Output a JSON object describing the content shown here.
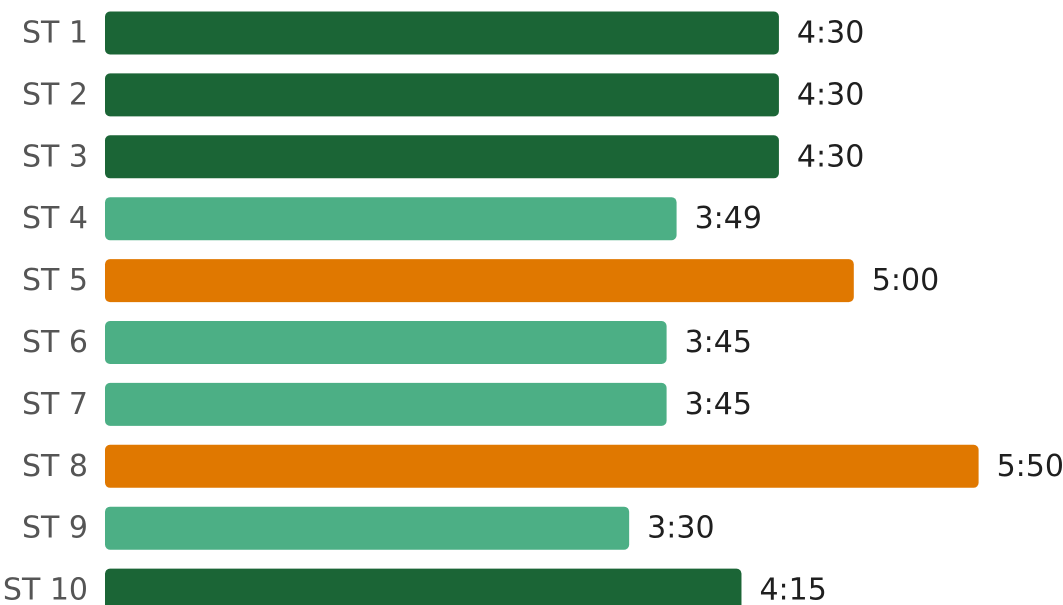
{
  "chart_data": {
    "type": "bar",
    "orientation": "horizontal",
    "title": "",
    "xlabel": "",
    "ylabel": "",
    "categories": [
      "ST 1",
      "ST 2",
      "ST 3",
      "ST 4",
      "ST 5",
      "ST 6",
      "ST 7",
      "ST 8",
      "ST 9",
      "ST 10"
    ],
    "values": [
      270,
      270,
      270,
      229,
      300,
      225,
      225,
      350,
      210,
      255
    ],
    "value_unit": "seconds",
    "value_labels": [
      "4:30",
      "4:30",
      "4:30",
      "3:49",
      "5:00",
      "3:45",
      "3:45",
      "5:50",
      "3:30",
      "4:15"
    ],
    "bar_colors": [
      "#1b6536",
      "#1b6536",
      "#1b6536",
      "#4caf85",
      "#e07800",
      "#4caf85",
      "#4caf85",
      "#e07800",
      "#4caf85",
      "#1b6536"
    ],
    "xlim": [
      0,
      350
    ],
    "grid": false,
    "legend": "none"
  }
}
